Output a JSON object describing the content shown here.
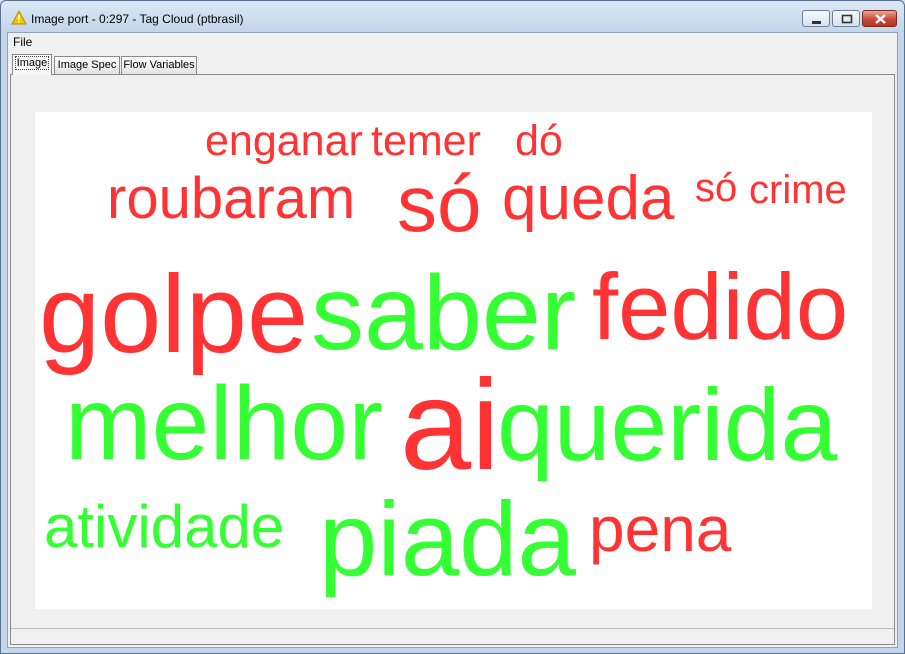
{
  "window": {
    "title": "Image port - 0:297 - Tag Cloud (ptbrasil)",
    "icon": "warning-triangle-icon"
  },
  "menu": {
    "file": "File"
  },
  "tabs": [
    {
      "label": "Image",
      "active": true
    },
    {
      "label": "Image Spec",
      "active": false
    },
    {
      "label": "Flow Variables",
      "active": false
    }
  ],
  "colors": {
    "positive": "#33ff33",
    "negative": "#ff3333"
  },
  "cloud": [
    {
      "text": "enganar",
      "color": "negative"
    },
    {
      "text": "temer",
      "color": "negative"
    },
    {
      "text": "dó",
      "color": "negative"
    },
    {
      "text": "roubaram",
      "color": "negative"
    },
    {
      "text": "só",
      "color": "negative"
    },
    {
      "text": "queda",
      "color": "negative"
    },
    {
      "text": "só",
      "color": "negative"
    },
    {
      "text": "crime",
      "color": "negative"
    },
    {
      "text": "golpe",
      "color": "negative"
    },
    {
      "text": "saber",
      "color": "positive"
    },
    {
      "text": "fedido",
      "color": "negative"
    },
    {
      "text": "melhor",
      "color": "positive"
    },
    {
      "text": "ai",
      "color": "negative"
    },
    {
      "text": "querida",
      "color": "positive"
    },
    {
      "text": "atividade",
      "color": "positive"
    },
    {
      "text": "piada",
      "color": "positive"
    },
    {
      "text": "pena",
      "color": "negative"
    }
  ]
}
